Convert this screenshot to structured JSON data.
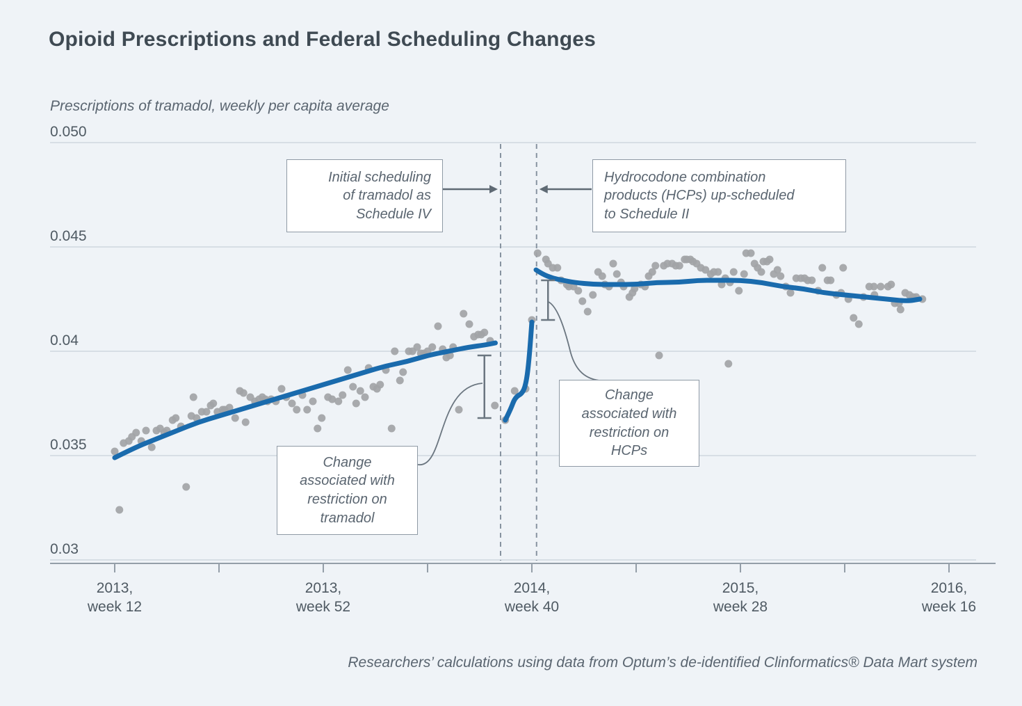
{
  "page": {
    "title": "Opioid Prescriptions and Federal Scheduling Changes",
    "subtitle": "Prescriptions of tramadol, weekly per capita average",
    "source_note": "Researchers’ calculations using data from Optum’s de-identified Clinformatics® Data Mart system"
  },
  "colors": {
    "background": "#eff3f7",
    "trend_line": "#1a6bad",
    "scatter_dot": "#a2a4a6",
    "grid_line": "#cfd8df",
    "axis_line": "#949ea8",
    "dashed_event_line": "#8793a0",
    "annotation_border": "#8f9aa5",
    "annotation_text": "#5a6570",
    "tick_label": "#4f5a63",
    "callout": "#6b7680",
    "arrow": "#5f6a74",
    "title_text": "#3f4a53"
  },
  "annotations": {
    "schedule_iv": {
      "lines": [
        "Initial scheduling",
        "of tramadol as",
        "Schedule IV"
      ]
    },
    "hcp_schedule_ii": {
      "lines": [
        "Hydrocodone combination",
        "products (HCPs) up-scheduled",
        "to Schedule II"
      ]
    },
    "tramadol_change": {
      "lines": [
        "Change",
        "associated with",
        "restriction on",
        "tramadol"
      ]
    },
    "hcp_change": {
      "lines": [
        "Change",
        "associated with",
        "restriction on",
        "HCPs"
      ]
    }
  },
  "chart_data": {
    "type": "scatter",
    "title": "Opioid Prescriptions and Federal Scheduling Changes",
    "xlabel": "",
    "ylabel": "Prescriptions of tramadol, weekly per capita average",
    "x_unit": "weeks since 2013 week 12",
    "ylim": [
      0.03,
      0.05
    ],
    "xlim_weeks": [
      0,
      165
    ],
    "grid": true,
    "y_axis": {
      "tick_values": [
        0.05,
        0.045,
        0.04,
        0.035,
        0.03
      ],
      "tick_labels": [
        "0.050",
        "0.045",
        "0.04",
        "0.035",
        "0.03"
      ]
    },
    "x_axis": {
      "tick_weeks": [
        0,
        40,
        80,
        120,
        160
      ],
      "tick_labels": [
        [
          "2013,",
          "week 12"
        ],
        [
          "2013,",
          "week 52"
        ],
        [
          "2014,",
          "week 40"
        ],
        [
          "2015,",
          "week 28"
        ],
        [
          "2016,",
          "week 16"
        ]
      ],
      "minor_tick_weeks": [
        20,
        60,
        100,
        140
      ]
    },
    "events": [
      {
        "name": "tramadol-scheduled-iv",
        "week": 74
      },
      {
        "name": "hcp-up-scheduled-ii",
        "week": 80.9
      }
    ],
    "error_bars": [
      {
        "name": "tramadol-change",
        "week": 70.9,
        "top": 0.0398,
        "bottom": 0.0368
      },
      {
        "name": "hcp-change",
        "week": 83.1,
        "top": 0.0434,
        "bottom": 0.0415
      }
    ],
    "series": [
      {
        "name": "trend-pre-scheduling",
        "points": [
          [
            0,
            0.0349
          ],
          [
            4,
            0.0354
          ],
          [
            8,
            0.0358
          ],
          [
            12,
            0.0362
          ],
          [
            16,
            0.0366
          ],
          [
            20,
            0.0369
          ],
          [
            24,
            0.0372
          ],
          [
            28,
            0.0375
          ],
          [
            32,
            0.0378
          ],
          [
            36,
            0.0381
          ],
          [
            40,
            0.0384
          ],
          [
            44,
            0.0387
          ],
          [
            48,
            0.039
          ],
          [
            52,
            0.0393
          ],
          [
            56,
            0.0395
          ],
          [
            60,
            0.0398
          ],
          [
            64,
            0.04
          ],
          [
            68,
            0.0402
          ],
          [
            71,
            0.0403
          ],
          [
            73,
            0.0404
          ]
        ]
      },
      {
        "name": "trend-between-events",
        "points": [
          [
            74.9,
            0.0367
          ],
          [
            75.9,
            0.0372
          ],
          [
            76.8,
            0.0378
          ],
          [
            78.3,
            0.038
          ],
          [
            79,
            0.0386
          ],
          [
            79.5,
            0.0397
          ],
          [
            80,
            0.0414
          ]
        ]
      },
      {
        "name": "trend-post-hcp",
        "points": [
          [
            80.8,
            0.0439
          ],
          [
            82,
            0.0437
          ],
          [
            84,
            0.0435
          ],
          [
            86,
            0.0434
          ],
          [
            88,
            0.0433
          ],
          [
            92,
            0.0432
          ],
          [
            96,
            0.0432
          ],
          [
            100,
            0.0432
          ],
          [
            104,
            0.0433
          ],
          [
            108,
            0.0433
          ],
          [
            112,
            0.0434
          ],
          [
            116,
            0.0434
          ],
          [
            120,
            0.0434
          ],
          [
            124,
            0.0433
          ],
          [
            128,
            0.0431
          ],
          [
            132,
            0.043
          ],
          [
            136,
            0.0428
          ],
          [
            140,
            0.0427
          ],
          [
            144,
            0.0426
          ],
          [
            148,
            0.0425
          ],
          [
            152,
            0.0424
          ],
          [
            154.4,
            0.0425
          ]
        ]
      }
    ],
    "scatter": [
      [
        0,
        0.0352
      ],
      [
        0.9,
        0.0324
      ],
      [
        1.7,
        0.0356
      ],
      [
        2.7,
        0.0357
      ],
      [
        3.3,
        0.0359
      ],
      [
        4.1,
        0.0361
      ],
      [
        5.1,
        0.0357
      ],
      [
        6,
        0.0362
      ],
      [
        7.1,
        0.0354
      ],
      [
        8,
        0.0362
      ],
      [
        8.7,
        0.0363
      ],
      [
        9.5,
        0.0361
      ],
      [
        10,
        0.0362
      ],
      [
        11.1,
        0.0367
      ],
      [
        11.7,
        0.0368
      ],
      [
        12.7,
        0.0364
      ],
      [
        13.7,
        0.0335
      ],
      [
        14.7,
        0.0369
      ],
      [
        15.1,
        0.0378
      ],
      [
        15.7,
        0.0368
      ],
      [
        16.7,
        0.0371
      ],
      [
        17.6,
        0.0371
      ],
      [
        18.4,
        0.0374
      ],
      [
        18.9,
        0.0375
      ],
      [
        19.7,
        0.0371
      ],
      [
        20.7,
        0.0372
      ],
      [
        21.1,
        0.0372
      ],
      [
        22,
        0.0373
      ],
      [
        23.1,
        0.0368
      ],
      [
        24,
        0.0381
      ],
      [
        24.7,
        0.038
      ],
      [
        25.1,
        0.0366
      ],
      [
        26,
        0.0378
      ],
      [
        26.9,
        0.0376
      ],
      [
        27.7,
        0.0377
      ],
      [
        28.3,
        0.0378
      ],
      [
        28.9,
        0.0377
      ],
      [
        29.3,
        0.0376
      ],
      [
        30,
        0.0377
      ],
      [
        30.9,
        0.0376
      ],
      [
        32,
        0.0382
      ],
      [
        32.9,
        0.0378
      ],
      [
        34,
        0.0375
      ],
      [
        34.9,
        0.0372
      ],
      [
        36,
        0.0379
      ],
      [
        36.9,
        0.0372
      ],
      [
        38,
        0.0376
      ],
      [
        38.9,
        0.0363
      ],
      [
        39.7,
        0.0368
      ],
      [
        40.9,
        0.0378
      ],
      [
        41.7,
        0.0377
      ],
      [
        42.9,
        0.0376
      ],
      [
        43.7,
        0.0379
      ],
      [
        44.7,
        0.0391
      ],
      [
        45.7,
        0.0383
      ],
      [
        46.3,
        0.0375
      ],
      [
        47.1,
        0.0381
      ],
      [
        48,
        0.0378
      ],
      [
        48.7,
        0.0392
      ],
      [
        49.6,
        0.0383
      ],
      [
        50.3,
        0.0382
      ],
      [
        50.9,
        0.0384
      ],
      [
        52,
        0.0391
      ],
      [
        53.1,
        0.0363
      ],
      [
        53.7,
        0.04
      ],
      [
        54.7,
        0.0386
      ],
      [
        55.3,
        0.039
      ],
      [
        56.4,
        0.04
      ],
      [
        57.1,
        0.04
      ],
      [
        58,
        0.0402
      ],
      [
        58.7,
        0.0399
      ],
      [
        59.3,
        0.0399
      ],
      [
        60,
        0.04
      ],
      [
        60.9,
        0.0402
      ],
      [
        62,
        0.0412
      ],
      [
        62.9,
        0.0401
      ],
      [
        63.6,
        0.0397
      ],
      [
        64.3,
        0.0398
      ],
      [
        64.9,
        0.0402
      ],
      [
        66,
        0.0372
      ],
      [
        66.9,
        0.0418
      ],
      [
        68,
        0.0413
      ],
      [
        68.9,
        0.0407
      ],
      [
        69.7,
        0.0408
      ],
      [
        70.3,
        0.0408
      ],
      [
        70.9,
        0.0409
      ],
      [
        72,
        0.0405
      ],
      [
        72.9,
        0.0374
      ],
      [
        74.9,
        0.0367
      ],
      [
        76.7,
        0.0381
      ],
      [
        78.8,
        0.0382
      ],
      [
        80,
        0.0415
      ],
      [
        81.1,
        0.0447
      ],
      [
        82.7,
        0.0444
      ],
      [
        83.1,
        0.0442
      ],
      [
        84,
        0.044
      ],
      [
        84.9,
        0.044
      ],
      [
        85.6,
        0.0434
      ],
      [
        86.7,
        0.0432
      ],
      [
        87.1,
        0.0431
      ],
      [
        88,
        0.0431
      ],
      [
        88.9,
        0.0429
      ],
      [
        89.7,
        0.0424
      ],
      [
        90.7,
        0.0419
      ],
      [
        91.7,
        0.0427
      ],
      [
        92.7,
        0.0438
      ],
      [
        93.5,
        0.0436
      ],
      [
        94,
        0.0432
      ],
      [
        94.8,
        0.0431
      ],
      [
        95.6,
        0.0442
      ],
      [
        96.3,
        0.0437
      ],
      [
        97.1,
        0.0433
      ],
      [
        97.6,
        0.0431
      ],
      [
        98.7,
        0.0426
      ],
      [
        99.3,
        0.0428
      ],
      [
        99.7,
        0.043
      ],
      [
        100.9,
        0.0432
      ],
      [
        101.7,
        0.0431
      ],
      [
        102.4,
        0.0436
      ],
      [
        103.1,
        0.0438
      ],
      [
        103.7,
        0.0441
      ],
      [
        104.4,
        0.0398
      ],
      [
        105.3,
        0.0441
      ],
      [
        106,
        0.0442
      ],
      [
        106.9,
        0.0442
      ],
      [
        107.6,
        0.0441
      ],
      [
        108.3,
        0.0441
      ],
      [
        109.3,
        0.0444
      ],
      [
        109.7,
        0.0444
      ],
      [
        110.4,
        0.0444
      ],
      [
        110.9,
        0.0443
      ],
      [
        111.6,
        0.0442
      ],
      [
        112.4,
        0.044
      ],
      [
        113.3,
        0.0439
      ],
      [
        114.3,
        0.0437
      ],
      [
        114.9,
        0.0438
      ],
      [
        115.7,
        0.0438
      ],
      [
        116.4,
        0.0432
      ],
      [
        117.1,
        0.0435
      ],
      [
        117.7,
        0.0394
      ],
      [
        118,
        0.0433
      ],
      [
        118.7,
        0.0438
      ],
      [
        119.7,
        0.0429
      ],
      [
        120.7,
        0.0437
      ],
      [
        121.1,
        0.0447
      ],
      [
        122,
        0.0447
      ],
      [
        122.7,
        0.0442
      ],
      [
        123.3,
        0.044
      ],
      [
        124,
        0.0438
      ],
      [
        124.4,
        0.0443
      ],
      [
        125.1,
        0.0443
      ],
      [
        125.6,
        0.0444
      ],
      [
        126.4,
        0.0437
      ],
      [
        127.1,
        0.0439
      ],
      [
        127.7,
        0.0436
      ],
      [
        128.7,
        0.0431
      ],
      [
        129.6,
        0.0428
      ],
      [
        130.7,
        0.0435
      ],
      [
        131.6,
        0.0435
      ],
      [
        132.3,
        0.0435
      ],
      [
        132.9,
        0.0434
      ],
      [
        133.7,
        0.0434
      ],
      [
        134.9,
        0.0429
      ],
      [
        135.7,
        0.044
      ],
      [
        136.7,
        0.0434
      ],
      [
        137.3,
        0.0434
      ],
      [
        138.4,
        0.0427
      ],
      [
        139.3,
        0.0428
      ],
      [
        139.7,
        0.044
      ],
      [
        140.7,
        0.0425
      ],
      [
        141.7,
        0.0416
      ],
      [
        142.7,
        0.0413
      ],
      [
        143.6,
        0.0426
      ],
      [
        144.7,
        0.0431
      ],
      [
        145.6,
        0.0431
      ],
      [
        145.7,
        0.0427
      ],
      [
        146.9,
        0.0431
      ],
      [
        148.3,
        0.0431
      ],
      [
        148.9,
        0.0432
      ],
      [
        149.6,
        0.0423
      ],
      [
        150.4,
        0.0423
      ],
      [
        150.7,
        0.042
      ],
      [
        151.6,
        0.0428
      ],
      [
        152.4,
        0.0427
      ],
      [
        153.1,
        0.0426
      ],
      [
        153.7,
        0.0426
      ],
      [
        154.9,
        0.0425
      ]
    ]
  }
}
